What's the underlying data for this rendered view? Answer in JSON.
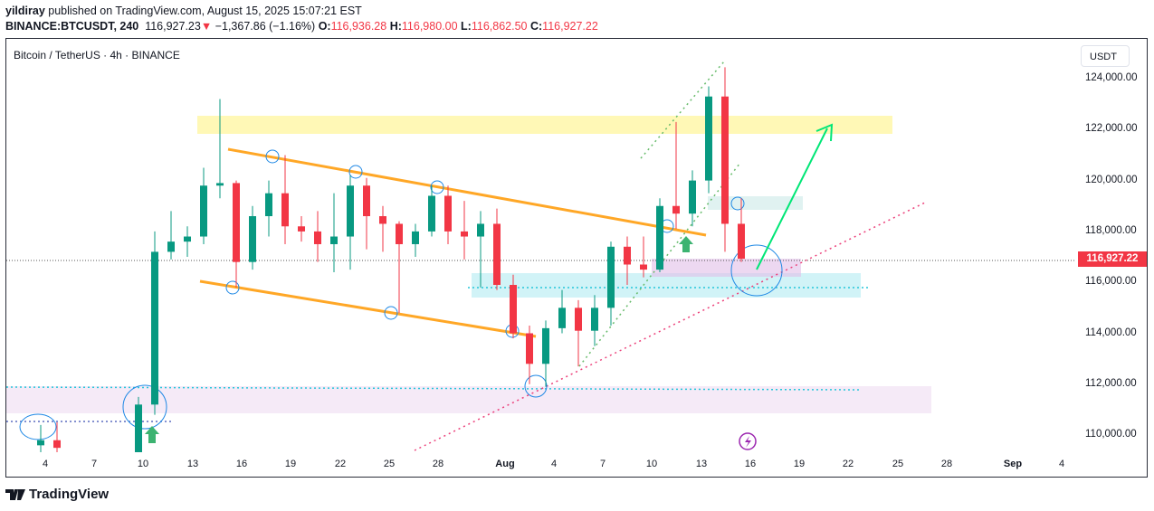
{
  "header": {
    "author": "yildiray",
    "published": "published on TradingView.com, August 15, 2025 15:07:21 EST",
    "symbol": "BINANCE:BTCUSDT, 240",
    "last": "116,927.23",
    "change_arrow": "▼",
    "change": "−1,367.86 (−1.16%)",
    "o_label": "O:",
    "o": "116,936.28",
    "h_label": "H:",
    "h": "116,980.00",
    "l_label": "L:",
    "l": "116,862.50",
    "c_label": "C:",
    "c": "116,927.22"
  },
  "chart_title": "Bitcoin / TetherUS · 4h · BINANCE",
  "currency": "USDT",
  "last_price_label": "116,927.22",
  "brand": "TradingView",
  "colors": {
    "up": "#089981",
    "down": "#f23645",
    "zone_yellow": "#fff59d",
    "zone_cyan": "#b2ebf2",
    "zone_pink": "#f3e5f5",
    "channel": "#ffa726",
    "arrow": "#00e676"
  },
  "chart_data": {
    "type": "candlestick",
    "ylim": [
      109300,
      125300
    ],
    "yticks": [
      "124,000.00",
      "122,000.00",
      "120,000.00",
      "118,000.00",
      "116,000.00",
      "114,000.00",
      "112,000.00",
      "110,000.00"
    ],
    "yvalues": [
      124000,
      122000,
      120000,
      118000,
      116000,
      114000,
      112000,
      110000
    ],
    "xticks": [
      "4",
      "7",
      "10",
      "13",
      "16",
      "19",
      "22",
      "25",
      "28",
      "Aug",
      "4",
      "7",
      "10",
      "13",
      "16",
      "19",
      "22",
      "25",
      "28",
      "Sep",
      "4"
    ],
    "grid": false,
    "candles": [
      {
        "date": "Jul 3",
        "o": 109600,
        "h": 110400,
        "l": 109300,
        "c": 109800
      },
      {
        "date": "Jul 4",
        "o": 109800,
        "h": 110500,
        "l": 109300,
        "c": 109500
      },
      {
        "date": "Jul 9",
        "o": 109300,
        "h": 111500,
        "l": 109300,
        "c": 111200
      },
      {
        "date": "Jul 10",
        "o": 111200,
        "h": 118000,
        "l": 110800,
        "c": 117200
      },
      {
        "date": "Jul 11",
        "o": 117200,
        "h": 118800,
        "l": 116900,
        "c": 117600
      },
      {
        "date": "Jul 12",
        "o": 117600,
        "h": 118200,
        "l": 117000,
        "c": 117800
      },
      {
        "date": "Jul 13",
        "o": 117800,
        "h": 120500,
        "l": 117500,
        "c": 119800
      },
      {
        "date": "Jul 14",
        "o": 119800,
        "h": 123200,
        "l": 119300,
        "c": 119900
      },
      {
        "date": "Jul 15",
        "o": 119900,
        "h": 120000,
        "l": 115800,
        "c": 116800
      },
      {
        "date": "Jul 16",
        "o": 116800,
        "h": 119000,
        "l": 116500,
        "c": 118600
      },
      {
        "date": "Jul 17",
        "o": 118600,
        "h": 120000,
        "l": 117800,
        "c": 119500
      },
      {
        "date": "Jul 18",
        "o": 119500,
        "h": 121000,
        "l": 117500,
        "c": 118200
      },
      {
        "date": "Jul 19",
        "o": 118200,
        "h": 118600,
        "l": 117600,
        "c": 118000
      },
      {
        "date": "Jul 20",
        "o": 118000,
        "h": 118800,
        "l": 116800,
        "c": 117500
      },
      {
        "date": "Jul 21",
        "o": 117500,
        "h": 119500,
        "l": 116400,
        "c": 117800
      },
      {
        "date": "Jul 22",
        "o": 117800,
        "h": 120200,
        "l": 116500,
        "c": 119800
      },
      {
        "date": "Jul 23",
        "o": 119800,
        "h": 120100,
        "l": 117300,
        "c": 118600
      },
      {
        "date": "Jul 24",
        "o": 118600,
        "h": 119000,
        "l": 117200,
        "c": 118300
      },
      {
        "date": "Jul 25",
        "o": 118300,
        "h": 118400,
        "l": 114800,
        "c": 117500
      },
      {
        "date": "Jul 26",
        "o": 117500,
        "h": 118300,
        "l": 117000,
        "c": 118000
      },
      {
        "date": "Jul 27",
        "o": 118000,
        "h": 119800,
        "l": 117800,
        "c": 119400
      },
      {
        "date": "Jul 28",
        "o": 119400,
        "h": 119800,
        "l": 117500,
        "c": 118000
      },
      {
        "date": "Jul 29",
        "o": 118000,
        "h": 119200,
        "l": 116900,
        "c": 117800
      },
      {
        "date": "Jul 30",
        "o": 117800,
        "h": 118800,
        "l": 115800,
        "c": 118300
      },
      {
        "date": "Jul 31",
        "o": 118300,
        "h": 118900,
        "l": 115700,
        "c": 115900
      },
      {
        "date": "Aug 1",
        "o": 115900,
        "h": 116300,
        "l": 113800,
        "c": 114000
      },
      {
        "date": "Aug 2",
        "o": 114000,
        "h": 114300,
        "l": 112000,
        "c": 112800
      },
      {
        "date": "Aug 3",
        "o": 112800,
        "h": 114500,
        "l": 111900,
        "c": 114200
      },
      {
        "date": "Aug 4",
        "o": 114200,
        "h": 115700,
        "l": 114000,
        "c": 115000
      },
      {
        "date": "Aug 5",
        "o": 115000,
        "h": 115300,
        "l": 112700,
        "c": 114100
      },
      {
        "date": "Aug 6",
        "o": 114100,
        "h": 115500,
        "l": 113500,
        "c": 115000
      },
      {
        "date": "Aug 7",
        "o": 115000,
        "h": 117600,
        "l": 114300,
        "c": 117400
      },
      {
        "date": "Aug 8",
        "o": 117400,
        "h": 117800,
        "l": 115900,
        "c": 116700
      },
      {
        "date": "Aug 9",
        "o": 116700,
        "h": 117800,
        "l": 116200,
        "c": 116500
      },
      {
        "date": "Aug 10",
        "o": 116500,
        "h": 119300,
        "l": 116400,
        "c": 119000
      },
      {
        "date": "Aug 11",
        "o": 119000,
        "h": 122300,
        "l": 118100,
        "c": 118700
      },
      {
        "date": "Aug 12",
        "o": 118700,
        "h": 120400,
        "l": 118200,
        "c": 120000
      },
      {
        "date": "Aug 13",
        "o": 120000,
        "h": 123700,
        "l": 119500,
        "c": 123300
      },
      {
        "date": "Aug 14",
        "o": 123300,
        "h": 124450,
        "l": 117200,
        "c": 118300
      },
      {
        "date": "Aug 15",
        "o": 118300,
        "h": 119300,
        "l": 116800,
        "c": 116927
      }
    ]
  }
}
